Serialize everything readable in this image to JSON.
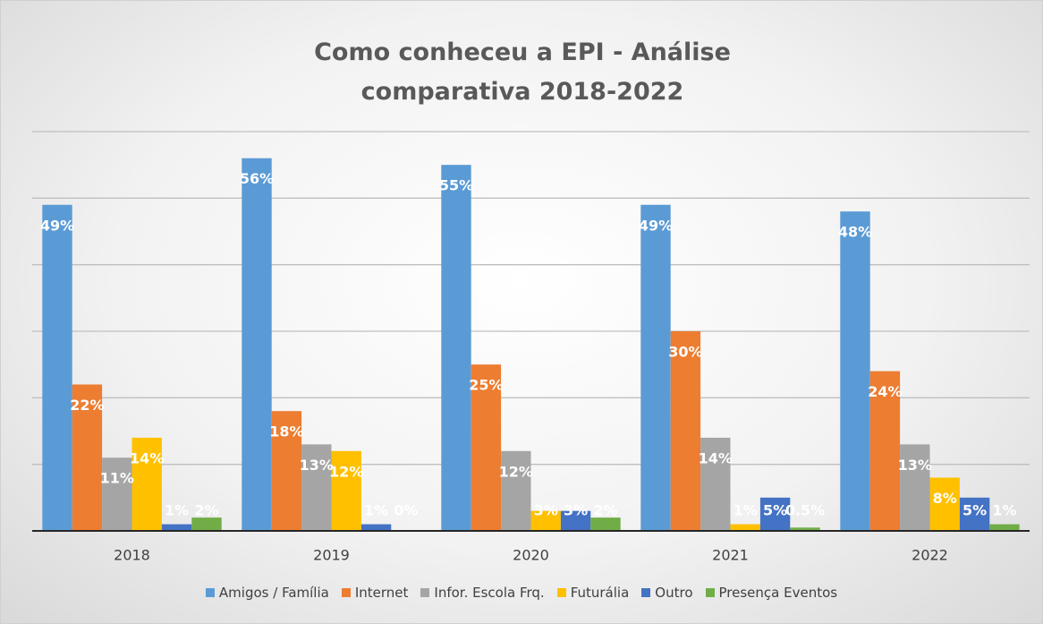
{
  "chart_data": {
    "type": "bar",
    "title": "Como conheceu a EPI - Análise comparativa 2018-2022",
    "categories": [
      "2018",
      "2019",
      "2020",
      "2021",
      "2022"
    ],
    "series": [
      {
        "name": "Amigos / Família",
        "color": "#5b9bd5",
        "values": [
          49,
          56,
          55,
          49,
          48
        ],
        "value_labels": [
          "49%",
          "56%",
          "55%",
          "49%",
          "48%"
        ]
      },
      {
        "name": "Internet",
        "color": "#ed7d31",
        "values": [
          22,
          18,
          25,
          30,
          24
        ],
        "value_labels": [
          "22%",
          "18%",
          "25%",
          "30%",
          "24%"
        ]
      },
      {
        "name": "Infor. Escola Frq.",
        "color": "#a5a5a5",
        "values": [
          11,
          13,
          12,
          14,
          13
        ],
        "value_labels": [
          "11%",
          "13%",
          "12%",
          "14%",
          "13%"
        ]
      },
      {
        "name": "Futurália",
        "color": "#ffc000",
        "values": [
          14,
          12,
          3,
          1,
          8
        ],
        "value_labels": [
          "14%",
          "12%",
          "3%",
          "1%",
          "8%"
        ]
      },
      {
        "name": "Outro",
        "color": "#4472c4",
        "values": [
          1,
          1,
          3,
          5,
          5
        ],
        "value_labels": [
          "1%",
          "1%",
          "3%",
          "5%",
          "5%"
        ]
      },
      {
        "name": "Presença Eventos",
        "color": "#70ad47",
        "values": [
          2,
          0,
          2,
          0.5,
          1
        ],
        "value_labels": [
          "2%",
          "0%",
          "2%",
          "0.5%",
          "1%"
        ]
      }
    ],
    "ylim": [
      0,
      60
    ],
    "yticks": [
      0,
      10,
      20,
      30,
      40,
      50,
      60
    ],
    "grid": true,
    "legend": "bottom"
  }
}
